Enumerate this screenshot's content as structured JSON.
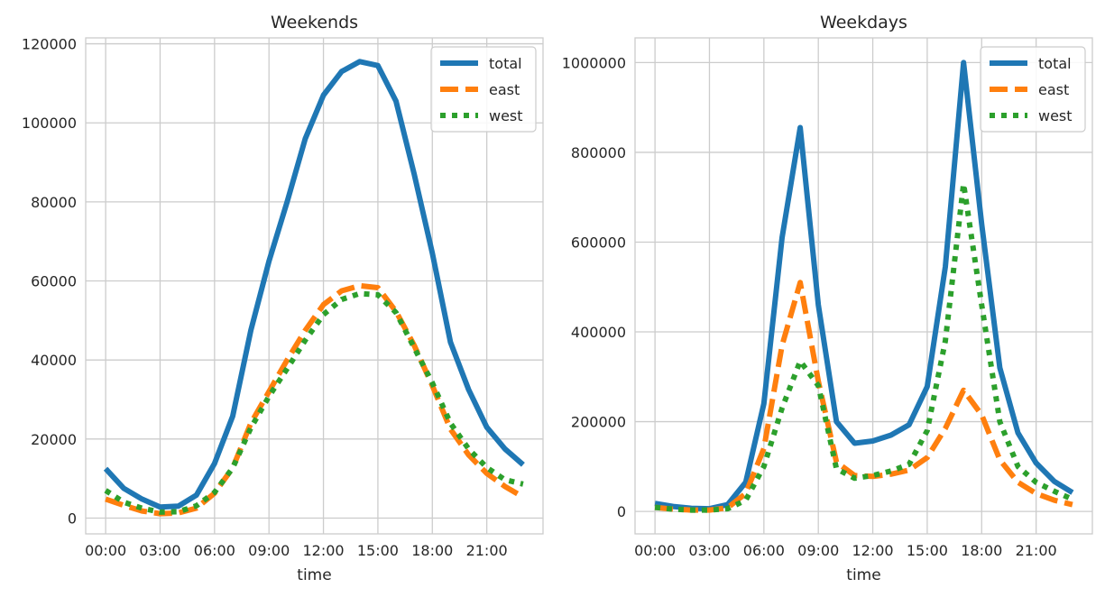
{
  "chart_data": [
    {
      "type": "line",
      "title": "Weekends",
      "xlabel": "time",
      "ylabel": "",
      "x": [
        0,
        1,
        2,
        3,
        4,
        5,
        6,
        7,
        8,
        9,
        10,
        11,
        12,
        13,
        14,
        15,
        16,
        17,
        18,
        19,
        20,
        21,
        22,
        23
      ],
      "xtick_values": [
        0,
        3,
        6,
        9,
        12,
        15,
        18,
        21
      ],
      "xtick_labels": [
        "00:00",
        "03:00",
        "06:00",
        "09:00",
        "12:00",
        "15:00",
        "18:00",
        "21:00"
      ],
      "xlim": [
        -1.1,
        24.1
      ],
      "ylim": [
        -4000,
        121500
      ],
      "ytick_values": [
        0,
        20000,
        40000,
        60000,
        80000,
        100000,
        120000
      ],
      "ytick_labels": [
        "0",
        "20000",
        "40000",
        "60000",
        "80000",
        "100000",
        "120000"
      ],
      "grid": true,
      "legend": "top-right",
      "series": [
        {
          "name": "total",
          "color": "#1f77b4",
          "dash": "solid",
          "values": [
            12500,
            7500,
            4800,
            2800,
            3000,
            5800,
            13800,
            25800,
            47500,
            65000,
            80000,
            96000,
            107000,
            113000,
            115500,
            114500,
            105500,
            87000,
            67000,
            44500,
            32500,
            23000,
            17500,
            13500
          ]
        },
        {
          "name": "east",
          "color": "#ff7f0e",
          "dash": "dashed",
          "values": [
            4800,
            3200,
            1800,
            1100,
            1300,
            2500,
            6300,
            12700,
            24000,
            32000,
            40000,
            47500,
            54000,
            57500,
            58800,
            58300,
            52300,
            43700,
            33500,
            22500,
            16000,
            11300,
            8000,
            5300
          ]
        },
        {
          "name": "west",
          "color": "#2ca02c",
          "dash": "dotted",
          "values": [
            7000,
            4000,
            2500,
            1500,
            1600,
            3100,
            6500,
            12700,
            22800,
            30800,
            37800,
            45000,
            51500,
            55300,
            56800,
            56500,
            52000,
            43100,
            34200,
            24000,
            17500,
            12800,
            9700,
            8600
          ]
        }
      ]
    },
    {
      "type": "line",
      "title": "Weekdays",
      "xlabel": "time",
      "ylabel": "",
      "x": [
        0,
        1,
        2,
        3,
        4,
        5,
        6,
        7,
        8,
        9,
        10,
        11,
        12,
        13,
        14,
        15,
        16,
        17,
        18,
        19,
        20,
        21,
        22,
        23
      ],
      "xtick_values": [
        0,
        3,
        6,
        9,
        12,
        15,
        18,
        21
      ],
      "xtick_labels": [
        "00:00",
        "03:00",
        "06:00",
        "09:00",
        "12:00",
        "15:00",
        "18:00",
        "21:00"
      ],
      "xlim": [
        -1.1,
        24.1
      ],
      "ylim": [
        -50000,
        1055000
      ],
      "ytick_values": [
        0,
        200000,
        400000,
        600000,
        800000,
        1000000
      ],
      "ytick_labels": [
        "0",
        "200000",
        "400000",
        "600000",
        "800000",
        "1000000"
      ],
      "grid": true,
      "legend": "top-right",
      "series": [
        {
          "name": "total",
          "color": "#1f77b4",
          "dash": "solid",
          "values": [
            18000,
            11000,
            7000,
            6000,
            15000,
            65000,
            240000,
            610000,
            855000,
            460000,
            200000,
            152000,
            157000,
            170000,
            193000,
            278000,
            545000,
            1000000,
            640000,
            320000,
            175000,
            108000,
            67000,
            42000
          ]
        },
        {
          "name": "east",
          "color": "#ff7f0e",
          "dash": "dashed",
          "values": [
            9000,
            5000,
            3000,
            3000,
            8000,
            40000,
            140000,
            370000,
            510000,
            290000,
            110000,
            80000,
            78000,
            83000,
            92000,
            120000,
            185000,
            270000,
            215000,
            115000,
            65000,
            40000,
            25000,
            15000
          ]
        },
        {
          "name": "west",
          "color": "#2ca02c",
          "dash": "dotted",
          "values": [
            9000,
            5000,
            3000,
            3000,
            6000,
            25000,
            100000,
            230000,
            335000,
            280000,
            95000,
            74000,
            80000,
            90000,
            105000,
            180000,
            380000,
            730000,
            460000,
            200000,
            100000,
            65000,
            45000,
            27000
          ]
        }
      ]
    }
  ]
}
